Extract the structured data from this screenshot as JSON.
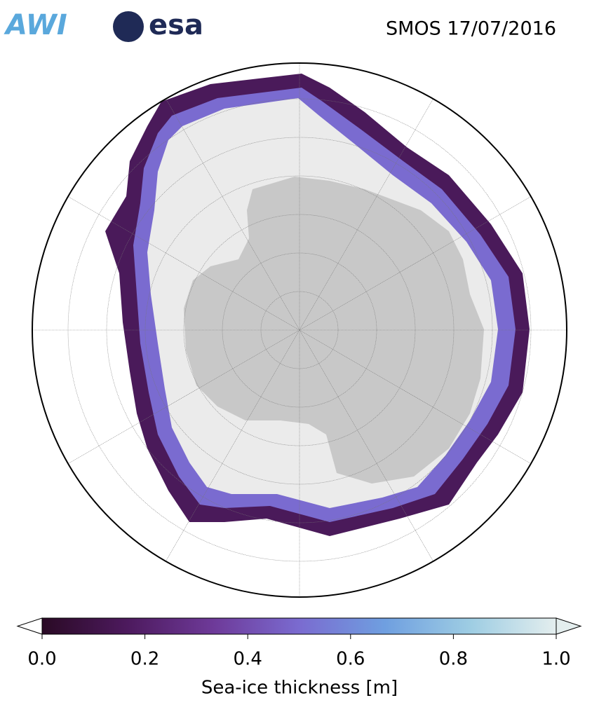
{
  "header": {
    "logos": [
      "AWI",
      "esa"
    ],
    "title": "SMOS 17/07/2016"
  },
  "colorbar": {
    "label": "Sea-ice thickness [m]",
    "lim": [
      0,
      1
    ],
    "ticks": [
      {
        "value": 0,
        "label": "0.0"
      },
      {
        "value": 0.2,
        "label": "0.2"
      },
      {
        "value": 0.4,
        "label": "0.4"
      },
      {
        "value": 0.6,
        "label": "0.6"
      },
      {
        "value": 0.8,
        "label": "0.8"
      },
      {
        "value": 1,
        "label": "1.0"
      }
    ],
    "colors": [
      "#2a0a25",
      "#4d1a5e",
      "#6e3a99",
      "#7a6bd0",
      "#6f9fe0",
      "#9ecde3",
      "#e4eeee"
    ]
  }
}
